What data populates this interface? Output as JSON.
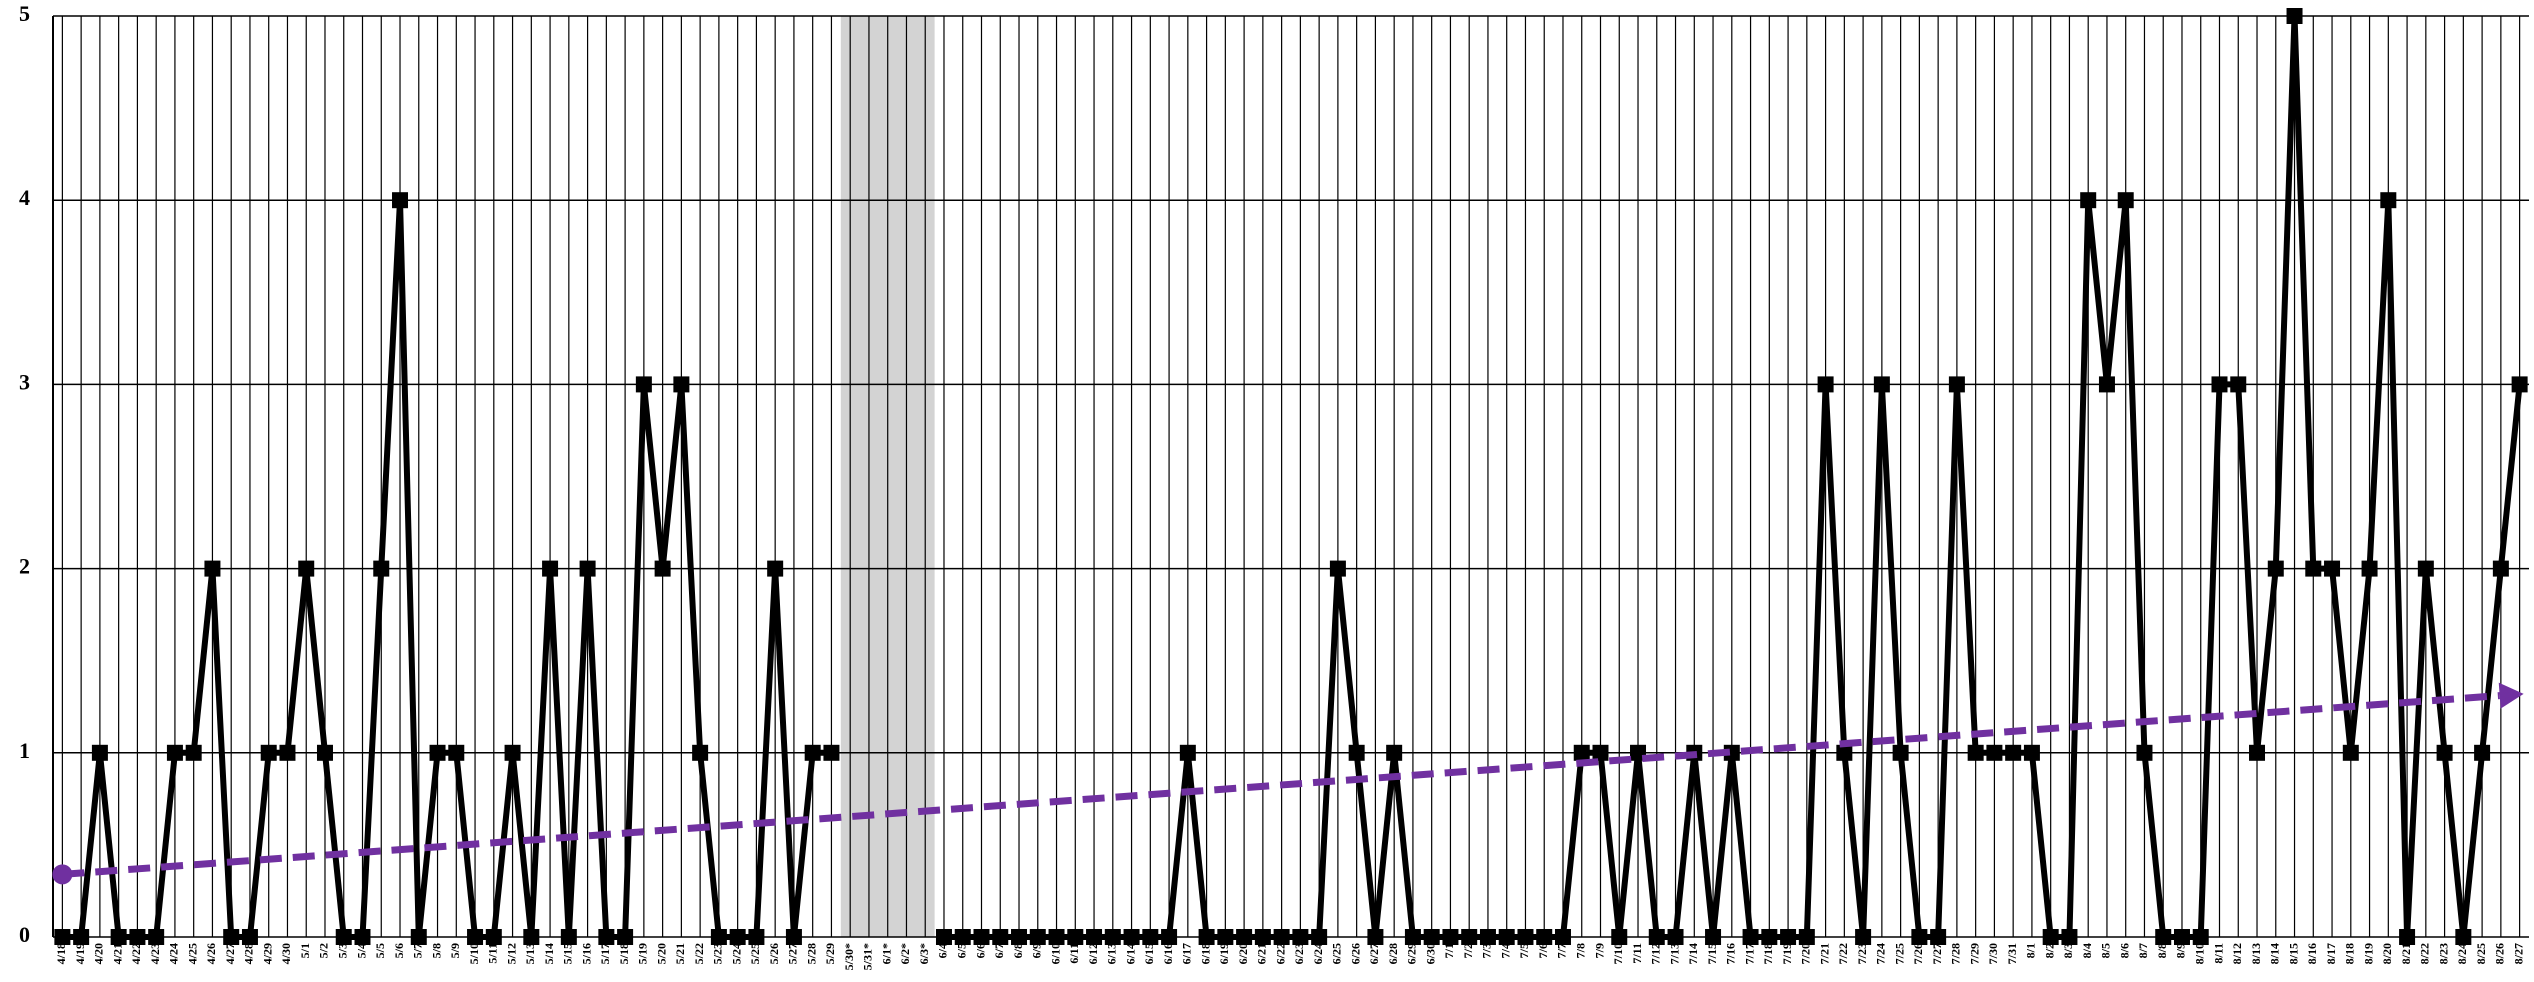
{
  "chart_data": {
    "type": "line",
    "categories": [
      "4/18",
      "4/19",
      "4/20",
      "4/21",
      "4/22",
      "4/23",
      "4/24",
      "4/25",
      "4/26",
      "4/27",
      "4/28",
      "4/29",
      "4/30",
      "5/1",
      "5/2",
      "5/3",
      "5/4",
      "5/5",
      "5/6",
      "5/7",
      "5/8",
      "5/9",
      "5/10",
      "5/11",
      "5/12",
      "5/13",
      "5/14",
      "5/15",
      "5/16",
      "5/17",
      "5/18",
      "5/19",
      "5/20",
      "5/21",
      "5/22",
      "5/23",
      "5/24",
      "5/25",
      "5/26",
      "5/27",
      "5/28",
      "5/29",
      "5/30*",
      "5/31*",
      "6/1*",
      "6/2*",
      "6/3*",
      "6/4",
      "6/5",
      "6/6",
      "6/7",
      "6/8",
      "6/9",
      "6/10",
      "6/11",
      "6/12",
      "6/13",
      "6/14",
      "6/15",
      "6/16",
      "6/17",
      "6/18",
      "6/19",
      "6/20",
      "6/21",
      "6/22",
      "6/23",
      "6/24",
      "6/25",
      "6/26",
      "6/27",
      "6/28",
      "6/29",
      "6/30",
      "7/1",
      "7/2",
      "7/3",
      "7/4",
      "7/5",
      "7/6",
      "7/7",
      "7/8",
      "7/9",
      "7/10",
      "7/11",
      "7/12",
      "7/13",
      "7/14",
      "7/15",
      "7/16",
      "7/17",
      "7/18",
      "7/19",
      "7/20",
      "7/21",
      "7/22",
      "7/23",
      "7/24",
      "7/25",
      "7/26",
      "7/27",
      "7/28",
      "7/29",
      "7/30",
      "7/31",
      "8/1",
      "8/2",
      "8/3",
      "8/4",
      "8/5",
      "8/6",
      "8/7",
      "8/8",
      "8/9",
      "8/10",
      "8/11",
      "8/12",
      "8/13",
      "8/14",
      "8/15",
      "8/16",
      "8/17",
      "8/18",
      "8/19",
      "8/20",
      "8/21",
      "8/22",
      "8/23",
      "8/24",
      "8/25",
      "8/26",
      "8/27"
    ],
    "values": [
      0,
      0,
      1,
      0,
      0,
      0,
      1,
      1,
      2,
      0,
      0,
      1,
      1,
      2,
      1,
      0,
      0,
      2,
      4,
      0,
      1,
      1,
      0,
      0,
      1,
      0,
      2,
      0,
      2,
      0,
      0,
      3,
      2,
      3,
      1,
      0,
      0,
      0,
      2,
      0,
      1,
      1,
      null,
      null,
      null,
      null,
      null,
      0,
      0,
      0,
      0,
      0,
      0,
      0,
      0,
      0,
      0,
      0,
      0,
      0,
      1,
      0,
      0,
      0,
      0,
      0,
      0,
      0,
      2,
      1,
      0,
      1,
      0,
      0,
      0,
      0,
      0,
      0,
      0,
      0,
      0,
      1,
      1,
      0,
      1,
      0,
      0,
      1,
      0,
      1,
      0,
      0,
      0,
      0,
      3,
      1,
      0,
      3,
      1,
      0,
      0,
      3,
      1,
      1,
      1,
      1,
      0,
      0,
      4,
      3,
      4,
      1,
      0,
      0,
      0,
      3,
      3,
      1,
      2,
      5,
      2,
      2,
      1,
      2,
      4,
      0,
      2,
      1,
      0,
      1,
      2,
      3
    ],
    "color": "#000000",
    "ylim": [
      0,
      5
    ],
    "yticks": [
      0,
      1,
      2,
      3,
      4,
      5
    ],
    "grid": true,
    "gap_shade_color": "#d3d3d3",
    "trendline": {
      "start": 0.34,
      "end": 1.32,
      "color": "#7030a0"
    }
  }
}
